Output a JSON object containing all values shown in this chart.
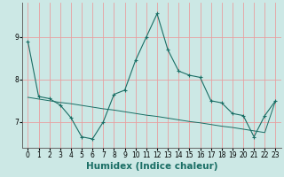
{
  "xlabel": "Humidex (Indice chaleur)",
  "ylabel": "",
  "background_color": "#cce8e5",
  "grid_color": "#e8a0a0",
  "line_color": "#1a6e65",
  "x_data": [
    0,
    1,
    2,
    3,
    4,
    5,
    6,
    7,
    8,
    9,
    10,
    11,
    12,
    13,
    14,
    15,
    16,
    17,
    18,
    19,
    20,
    21,
    22,
    23
  ],
  "y_line1": [
    8.9,
    7.6,
    7.55,
    7.4,
    7.1,
    6.65,
    6.6,
    7.0,
    7.65,
    7.75,
    8.45,
    9.0,
    9.55,
    8.7,
    8.2,
    8.1,
    8.05,
    7.5,
    7.45,
    7.2,
    7.15,
    6.65,
    7.15,
    7.5
  ],
  "y_line2": [
    7.58,
    7.54,
    7.5,
    7.46,
    7.43,
    7.39,
    7.35,
    7.31,
    7.28,
    7.24,
    7.2,
    7.16,
    7.13,
    7.09,
    7.05,
    7.01,
    6.98,
    6.94,
    6.9,
    6.87,
    6.83,
    6.79,
    6.75,
    7.5
  ],
  "xlim": [
    -0.5,
    23.5
  ],
  "ylim": [
    6.4,
    9.8
  ],
  "yticks": [
    7,
    8,
    9
  ],
  "xticks": [
    0,
    1,
    2,
    3,
    4,
    5,
    6,
    7,
    8,
    9,
    10,
    11,
    12,
    13,
    14,
    15,
    16,
    17,
    18,
    19,
    20,
    21,
    22,
    23
  ],
  "tick_fontsize": 5.5,
  "xlabel_fontsize": 7.5
}
